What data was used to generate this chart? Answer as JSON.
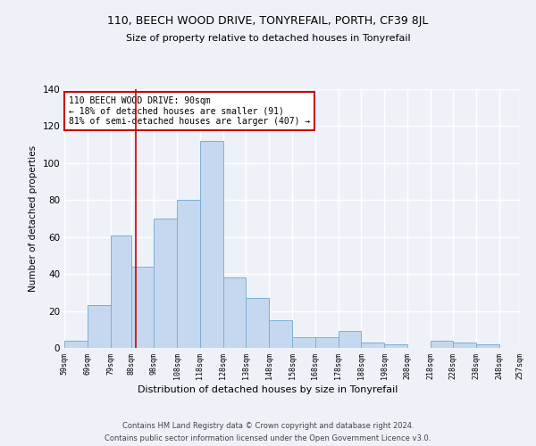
{
  "title": "110, BEECH WOOD DRIVE, TONYREFAIL, PORTH, CF39 8JL",
  "subtitle": "Size of property relative to detached houses in Tonyrefail",
  "xlabel": "Distribution of detached houses by size in Tonyrefail",
  "ylabel": "Number of detached properties",
  "bar_color": "#c5d8f0",
  "bar_edge_color": "#7bafd4",
  "bins": [
    59,
    69,
    79,
    88,
    98,
    108,
    118,
    128,
    138,
    148,
    158,
    168,
    178,
    188,
    198,
    208,
    218,
    228,
    238,
    248,
    257
  ],
  "bar_heights": [
    4,
    23,
    61,
    44,
    70,
    80,
    112,
    38,
    27,
    15,
    6,
    6,
    9,
    3,
    2,
    0,
    4,
    3,
    2,
    0
  ],
  "tick_labels": [
    "59sqm",
    "69sqm",
    "79sqm",
    "88sqm",
    "98sqm",
    "108sqm",
    "118sqm",
    "128sqm",
    "138sqm",
    "148sqm",
    "158sqm",
    "168sqm",
    "178sqm",
    "188sqm",
    "198sqm",
    "208sqm",
    "218sqm",
    "228sqm",
    "238sqm",
    "248sqm",
    "257sqm"
  ],
  "ylim": [
    0,
    140
  ],
  "yticks": [
    0,
    20,
    40,
    60,
    80,
    100,
    120,
    140
  ],
  "vline_x": 90,
  "vline_color": "#cc0000",
  "annotation_text": "110 BEECH WOOD DRIVE: 90sqm\n← 18% of detached houses are smaller (91)\n81% of semi-detached houses are larger (407) →",
  "annotation_box_color": "white",
  "annotation_box_edge": "#cc0000",
  "footer_line1": "Contains HM Land Registry data © Crown copyright and database right 2024.",
  "footer_line2": "Contains public sector information licensed under the Open Government Licence v3.0.",
  "background_color": "#eef2f8",
  "grid_color": "white",
  "title_fontsize": 9,
  "subtitle_fontsize": 8,
  "xlabel_fontsize": 8,
  "ylabel_fontsize": 7.5,
  "tick_fontsize": 6,
  "annotation_fontsize": 7,
  "footer_fontsize": 6
}
